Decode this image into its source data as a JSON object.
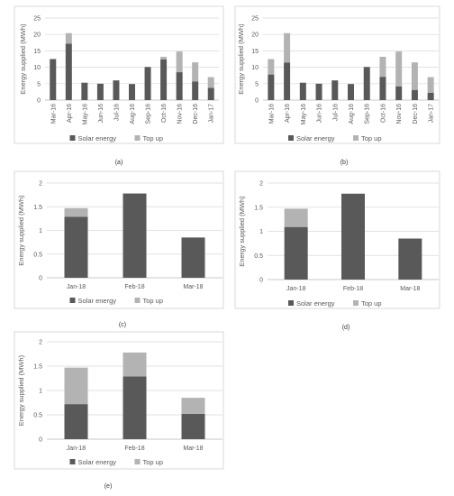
{
  "chart_data": [
    {
      "panel_label": "(a)",
      "type": "bar",
      "stacked": true,
      "categories": [
        "Mar-16",
        "Apr-16",
        "May-16",
        "Jun-16",
        "Jul-16",
        "Aug-16",
        "Sep-16",
        "Oct-16",
        "Nov-16",
        "Dec-16",
        "Jan-17"
      ],
      "series": [
        {
          "name": "Solar energy",
          "color": "#595959",
          "values": [
            12.5,
            17.2,
            5.3,
            5.0,
            6.0,
            4.9,
            10.1,
            12.4,
            8.5,
            5.7,
            3.7
          ]
        },
        {
          "name": "Top up",
          "color": "#b3b3b3",
          "values": [
            0,
            3.2,
            0,
            0,
            0,
            0,
            0,
            0.8,
            6.3,
            5.8,
            3.3
          ]
        }
      ],
      "xlabel": "",
      "ylabel": "Energy supplied (MWh)",
      "ylim": [
        0,
        25
      ],
      "yticks": [
        "0",
        "5",
        "10",
        "15",
        "20",
        "25"
      ],
      "grid": true,
      "legend": "bottom"
    },
    {
      "panel_label": "(b)",
      "type": "bar",
      "stacked": true,
      "categories": [
        "Mar-16",
        "Apr-16",
        "May-16",
        "Jun-16",
        "Jul-16",
        "Aug-16",
        "Sep-16",
        "Oct-16",
        "Nov-16",
        "Dec-16",
        "Jan-17"
      ],
      "series": [
        {
          "name": "Solar energy",
          "color": "#595959",
          "values": [
            7.8,
            11.4,
            5.3,
            5.0,
            6.0,
            4.9,
            10.1,
            7.1,
            4.2,
            3.1,
            2.2
          ]
        },
        {
          "name": "Top up",
          "color": "#b3b3b3",
          "values": [
            4.7,
            9.0,
            0,
            0,
            0,
            0,
            0,
            6.1,
            10.6,
            8.4,
            4.8
          ]
        }
      ],
      "xlabel": "",
      "ylabel": "Energy supplied (MWh)",
      "ylim": [
        0,
        25
      ],
      "yticks": [
        "0",
        "5",
        "10",
        "15",
        "20",
        "25"
      ],
      "grid": true,
      "legend": "bottom"
    },
    {
      "panel_label": "(c)",
      "type": "bar",
      "stacked": true,
      "categories": [
        "Jan-18",
        "Feb-18",
        "Mar-18"
      ],
      "series": [
        {
          "name": "Solar energy",
          "color": "#595959",
          "values": [
            1.29,
            1.78,
            0.85
          ]
        },
        {
          "name": "Top up",
          "color": "#b3b3b3",
          "values": [
            0.18,
            0,
            0
          ]
        }
      ],
      "xlabel": "",
      "ylabel": "Energy supplied (MWh)",
      "ylim": [
        0,
        2
      ],
      "yticks": [
        "0",
        "0.5",
        "1",
        "1.5",
        "2"
      ],
      "grid": true,
      "legend": "bottom"
    },
    {
      "panel_label": "(d)",
      "type": "bar",
      "stacked": true,
      "categories": [
        "Jan-18",
        "Feb-18",
        "Mar-18"
      ],
      "series": [
        {
          "name": "Solar energy",
          "color": "#595959",
          "values": [
            1.09,
            1.78,
            0.85
          ]
        },
        {
          "name": "Top up",
          "color": "#b3b3b3",
          "values": [
            0.38,
            0,
            0
          ]
        }
      ],
      "xlabel": "",
      "ylabel": "Energy supplied (MWh)",
      "ylim": [
        0,
        2
      ],
      "yticks": [
        "0",
        "0.5",
        "1",
        "1.5",
        "2"
      ],
      "grid": true,
      "legend": "bottom"
    },
    {
      "panel_label": "(e)",
      "type": "bar",
      "stacked": true,
      "categories": [
        "Jan-18",
        "Feb-18",
        "Mar-18"
      ],
      "series": [
        {
          "name": "Solar energy",
          "color": "#595959",
          "values": [
            0.72,
            1.29,
            0.52
          ]
        },
        {
          "name": "Top up",
          "color": "#b3b3b3",
          "values": [
            0.75,
            0.49,
            0.33
          ]
        }
      ],
      "xlabel": "",
      "ylabel": "Energy supplied (MWh)",
      "ylim": [
        0,
        2
      ],
      "yticks": [
        "0",
        "0.5",
        "1",
        "1.5",
        "2"
      ],
      "grid": true,
      "legend": "bottom"
    }
  ]
}
